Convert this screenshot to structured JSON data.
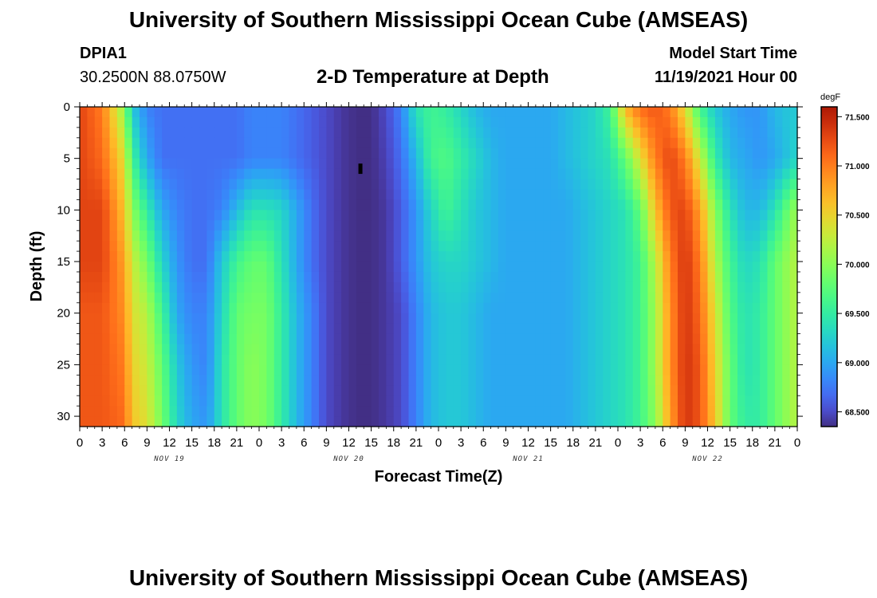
{
  "header": {
    "title": "University of Southern Mississippi Ocean Cube (AMSEAS)",
    "station_id": "DPIA1",
    "station_coords": "30.2500N  88.0750W",
    "chart_title": "2-D Temperature at Depth",
    "model_label": "Model Start Time",
    "model_time": "11/19/2021 Hour 00",
    "footer_title": "University of Southern Mississippi Ocean Cube (AMSEAS)"
  },
  "chart_data": {
    "type": "heatmap",
    "title": "2-D Temperature at Depth",
    "xlabel": "Forecast Time(Z)",
    "ylabel": "Depth (ft)",
    "x_tick_labels": [
      "0",
      "3",
      "6",
      "9",
      "12",
      "15",
      "18",
      "21",
      "0",
      "3",
      "6",
      "9",
      "12",
      "15",
      "18",
      "21",
      "0",
      "3",
      "6",
      "9",
      "12",
      "15",
      "18",
      "21",
      "0",
      "3",
      "6",
      "9",
      "12",
      "15",
      "18",
      "21",
      "0"
    ],
    "x_hours": [
      0,
      3,
      6,
      9,
      12,
      15,
      18,
      21,
      24,
      27,
      30,
      33,
      36,
      39,
      42,
      45,
      48,
      51,
      54,
      57,
      60,
      63,
      66,
      69,
      72,
      75,
      78,
      81,
      84,
      87,
      90,
      93,
      96
    ],
    "day_labels": [
      "NOV 19",
      "NOV 20",
      "NOV 21",
      "NOV 22"
    ],
    "y_ticks": [
      0,
      5,
      10,
      15,
      20,
      25,
      30
    ],
    "y_tick_labels": [
      "0",
      "5",
      "10",
      "15",
      "20",
      "25",
      "30"
    ],
    "ylim": [
      0,
      31
    ],
    "xlim": [
      0,
      96
    ],
    "colorbar": {
      "unit": "degF",
      "tick_values": [
        71.5,
        71.0,
        70.5,
        70.0,
        69.5,
        69.0,
        68.5
      ],
      "tick_labels": [
        "71.500",
        "71.000",
        "70.500",
        "70.000",
        "69.500",
        "69.000",
        "68.500"
      ],
      "range": [
        68.35,
        71.6
      ],
      "colormap": "turbo"
    },
    "temperature_samples": {
      "x_hours": [
        0,
        3,
        6,
        7,
        9,
        11,
        13,
        15,
        17,
        19,
        21,
        23,
        25,
        27,
        29,
        31,
        33,
        35,
        37,
        39,
        41,
        43,
        45,
        47,
        49,
        51,
        53,
        55,
        57,
        59,
        61,
        63,
        65,
        67,
        69,
        71,
        73,
        75,
        77,
        79,
        81,
        83,
        85,
        87,
        89,
        91,
        93,
        95,
        96
      ],
      "depth_ft": [
        0,
        5,
        10,
        15,
        20,
        25,
        31
      ],
      "values_degF": [
        [
          71.3,
          71.0,
          70.0,
          69.2,
          68.8,
          68.7,
          68.7,
          68.7,
          68.7,
          68.7,
          68.7,
          68.8,
          68.8,
          68.8,
          68.7,
          68.6,
          68.5,
          68.4,
          68.35,
          68.35,
          68.5,
          68.8,
          69.4,
          69.6,
          69.5,
          69.3,
          69.1,
          69.0,
          69.0,
          69.0,
          69.0,
          69.0,
          69.1,
          69.2,
          69.3,
          69.6,
          70.7,
          71.1,
          71.2,
          71.0,
          70.4,
          69.6,
          69.2,
          69.0,
          68.9,
          68.9,
          69.1,
          69.2,
          69.2
        ],
        [
          71.3,
          71.1,
          70.4,
          69.6,
          69.0,
          68.7,
          68.7,
          68.7,
          68.7,
          68.7,
          68.7,
          68.8,
          68.8,
          68.8,
          68.7,
          68.6,
          68.5,
          68.4,
          68.35,
          68.35,
          68.45,
          68.7,
          69.1,
          69.6,
          69.7,
          69.5,
          69.3,
          69.1,
          69.0,
          69.0,
          69.0,
          69.0,
          69.1,
          69.2,
          69.3,
          69.4,
          69.8,
          70.4,
          71.0,
          71.3,
          71.0,
          70.3,
          69.5,
          69.1,
          69.0,
          68.9,
          69.0,
          69.2,
          69.3
        ],
        [
          71.3,
          71.3,
          70.6,
          70.0,
          69.5,
          69.0,
          68.8,
          68.7,
          68.7,
          68.8,
          69.1,
          69.4,
          69.4,
          69.3,
          69.0,
          68.7,
          68.5,
          68.4,
          68.35,
          68.35,
          68.4,
          68.6,
          68.9,
          69.3,
          69.6,
          69.4,
          69.2,
          69.1,
          69.0,
          69.0,
          69.0,
          69.0,
          69.0,
          69.1,
          69.2,
          69.3,
          69.4,
          69.8,
          70.6,
          71.2,
          71.3,
          70.8,
          70.0,
          69.4,
          69.1,
          69.1,
          69.4,
          69.9,
          70.1
        ],
        [
          71.3,
          71.3,
          70.8,
          70.3,
          69.9,
          69.3,
          68.9,
          68.7,
          68.7,
          69.2,
          69.6,
          69.8,
          69.8,
          69.4,
          69.0,
          68.7,
          68.5,
          68.4,
          68.35,
          68.35,
          68.4,
          68.6,
          68.9,
          69.2,
          69.3,
          69.3,
          69.2,
          69.1,
          69.0,
          69.0,
          69.0,
          69.0,
          69.0,
          69.1,
          69.2,
          69.3,
          69.4,
          69.6,
          70.2,
          71.0,
          71.4,
          71.0,
          70.2,
          69.6,
          69.3,
          69.4,
          69.8,
          70.1,
          70.2
        ],
        [
          71.2,
          71.2,
          70.9,
          70.4,
          70.2,
          69.6,
          69.0,
          68.8,
          68.8,
          69.3,
          69.8,
          69.9,
          69.9,
          69.5,
          69.1,
          68.8,
          68.5,
          68.4,
          68.35,
          68.35,
          68.4,
          68.5,
          68.8,
          69.1,
          69.2,
          69.2,
          69.1,
          69.0,
          69.0,
          69.0,
          69.0,
          69.0,
          69.0,
          69.1,
          69.2,
          69.3,
          69.4,
          69.6,
          70.1,
          70.9,
          71.4,
          71.1,
          70.4,
          69.7,
          69.4,
          69.5,
          69.8,
          70.1,
          70.2
        ],
        [
          71.2,
          71.2,
          71.0,
          70.5,
          70.3,
          69.8,
          69.2,
          68.9,
          68.8,
          69.4,
          69.8,
          70.0,
          69.9,
          69.5,
          69.1,
          68.8,
          68.5,
          68.4,
          68.35,
          68.35,
          68.4,
          68.5,
          68.8,
          69.1,
          69.2,
          69.2,
          69.1,
          69.0,
          69.0,
          69.0,
          69.0,
          69.0,
          69.0,
          69.1,
          69.2,
          69.3,
          69.4,
          69.6,
          70.1,
          70.9,
          71.4,
          71.2,
          70.5,
          69.8,
          69.4,
          69.5,
          69.8,
          70.1,
          70.2
        ],
        [
          71.2,
          71.2,
          71.1,
          70.6,
          70.4,
          69.9,
          69.3,
          69.0,
          68.9,
          69.4,
          69.8,
          70.0,
          69.9,
          69.5,
          69.1,
          68.8,
          68.5,
          68.4,
          68.35,
          68.35,
          68.4,
          68.5,
          68.8,
          69.1,
          69.2,
          69.2,
          69.1,
          69.0,
          69.0,
          69.0,
          69.0,
          69.0,
          69.0,
          69.1,
          69.2,
          69.3,
          69.4,
          69.6,
          70.0,
          70.8,
          71.4,
          71.2,
          70.6,
          69.8,
          69.5,
          69.5,
          69.8,
          70.1,
          70.2
        ]
      ]
    }
  }
}
